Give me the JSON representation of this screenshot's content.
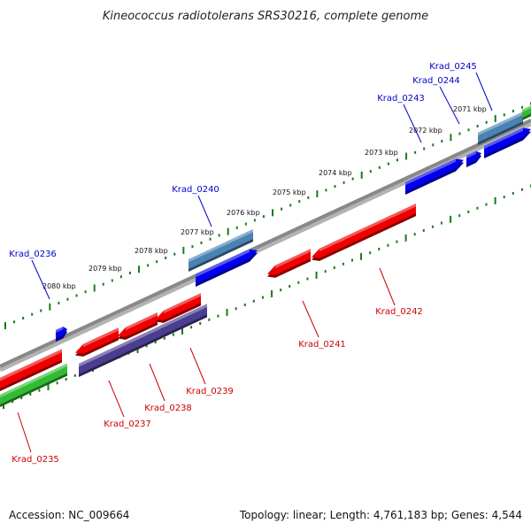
{
  "title": "Kineococcus radiotolerans SRS30216, complete genome",
  "footer": {
    "accession": "Accession: NC_009664",
    "summary": "Topology: linear; Length: 4,761,183 bp; Genes: 4,544"
  },
  "colors": {
    "forward": "#0000ee",
    "forward_label": "#0000cc",
    "reverse": "#ee0000",
    "reverse_label": "#cc0000",
    "rna_forward": "#4a82b4",
    "rna_reverse": "#4b3d8f",
    "green_feature": "#33bb33",
    "backbone": "#888888",
    "ticks": "#1a7a1a"
  },
  "axis": {
    "unit": "kbp",
    "tick_labels": [
      "2080 kbp",
      "2079 kbp",
      "2078 kbp",
      "2077 kbp",
      "2076 kbp",
      "2075 kbp",
      "2074 kbp",
      "2073 kbp",
      "2072 kbp",
      "2071 kbp"
    ]
  },
  "genes": [
    {
      "name": "Krad_0235",
      "strand": "reverse"
    },
    {
      "name": "Krad_0236",
      "strand": "forward"
    },
    {
      "name": "Krad_0237",
      "strand": "reverse"
    },
    {
      "name": "Krad_0238",
      "strand": "reverse"
    },
    {
      "name": "Krad_0239",
      "strand": "reverse"
    },
    {
      "name": "Krad_0240",
      "strand": "forward"
    },
    {
      "name": "Krad_0241",
      "strand": "reverse"
    },
    {
      "name": "Krad_0242",
      "strand": "reverse"
    },
    {
      "name": "Krad_0243",
      "strand": "forward"
    },
    {
      "name": "Krad_0244",
      "strand": "forward"
    },
    {
      "name": "Krad_0245",
      "strand": "forward"
    }
  ]
}
